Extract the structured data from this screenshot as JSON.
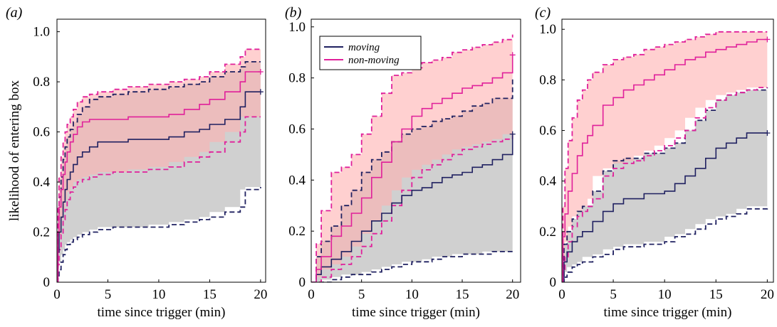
{
  "colors": {
    "moving": "#1f2060",
    "non_moving": "#e0209a",
    "moving_band": "#cdcdcd",
    "non_moving_band": "#ffb0b0",
    "overlap_band": "#c09a98"
  },
  "chart_data": [
    {
      "type": "line",
      "panel_label": "(a)",
      "xlabel": "time since trigger (min)",
      "ylabel": "likelihood of entering box",
      "xlim": [
        0,
        20.5
      ],
      "ylim": [
        0,
        1.05
      ],
      "xticks": [
        0,
        5,
        10,
        15,
        20
      ],
      "yticks": [
        0,
        0.2,
        0.4,
        0.6,
        0.8,
        1.0
      ],
      "ytick_labels": [
        "0",
        "0.2",
        "0.4",
        "0.6",
        "0.8",
        "1.0"
      ],
      "legend": null,
      "series": [
        {
          "name": "moving",
          "x": [
            0,
            0.1,
            0.2,
            0.4,
            0.6,
            0.8,
            1.0,
            1.3,
            1.6,
            2.0,
            2.5,
            3.2,
            4.0,
            5.5,
            7.0,
            9.0,
            11.0,
            12.5,
            14.0,
            15.0,
            16.5,
            18.0,
            18.5,
            20.0
          ],
          "y": [
            0,
            0.12,
            0.2,
            0.26,
            0.32,
            0.37,
            0.41,
            0.44,
            0.47,
            0.5,
            0.52,
            0.54,
            0.56,
            0.56,
            0.57,
            0.57,
            0.58,
            0.6,
            0.61,
            0.63,
            0.65,
            0.7,
            0.76,
            0.76
          ],
          "lower": [
            0,
            0.02,
            0.05,
            0.08,
            0.11,
            0.13,
            0.15,
            0.16,
            0.17,
            0.18,
            0.19,
            0.2,
            0.21,
            0.22,
            0.22,
            0.22,
            0.23,
            0.24,
            0.25,
            0.26,
            0.28,
            0.3,
            0.37,
            0.38
          ],
          "upper": [
            0,
            0.25,
            0.34,
            0.42,
            0.49,
            0.54,
            0.58,
            0.61,
            0.64,
            0.67,
            0.7,
            0.73,
            0.74,
            0.75,
            0.76,
            0.77,
            0.78,
            0.79,
            0.8,
            0.82,
            0.84,
            0.86,
            0.88,
            0.88
          ]
        },
        {
          "name": "non-moving",
          "x": [
            0,
            0.1,
            0.2,
            0.4,
            0.6,
            0.8,
            1.0,
            1.3,
            1.6,
            2.0,
            2.5,
            3.2,
            4.0,
            5.5,
            7.0,
            9.0,
            11.0,
            12.5,
            14.0,
            15.0,
            16.5,
            18.0,
            18.5,
            20.0
          ],
          "y": [
            0,
            0.2,
            0.3,
            0.37,
            0.43,
            0.48,
            0.52,
            0.56,
            0.59,
            0.62,
            0.64,
            0.65,
            0.65,
            0.65,
            0.66,
            0.66,
            0.67,
            0.69,
            0.71,
            0.73,
            0.76,
            0.8,
            0.84,
            0.84
          ],
          "lower": [
            0,
            0.07,
            0.13,
            0.19,
            0.25,
            0.29,
            0.33,
            0.36,
            0.38,
            0.4,
            0.41,
            0.42,
            0.43,
            0.44,
            0.44,
            0.45,
            0.46,
            0.48,
            0.5,
            0.52,
            0.56,
            0.6,
            0.66,
            0.66
          ],
          "upper": [
            0,
            0.3,
            0.42,
            0.5,
            0.56,
            0.6,
            0.63,
            0.66,
            0.69,
            0.72,
            0.74,
            0.75,
            0.76,
            0.77,
            0.78,
            0.79,
            0.8,
            0.81,
            0.82,
            0.84,
            0.87,
            0.9,
            0.93,
            0.93
          ]
        }
      ]
    },
    {
      "type": "line",
      "panel_label": "(b)",
      "xlabel": "time since trigger (min)",
      "ylabel": "",
      "xlim": [
        0,
        20.8
      ],
      "ylim": [
        0,
        1.03
      ],
      "xticks": [
        0,
        5,
        10,
        15,
        20
      ],
      "yticks": [
        0,
        0.2,
        0.4,
        0.6,
        0.8,
        1.0
      ],
      "ytick_labels": [
        "0",
        "0.2",
        "0.4",
        "0.6",
        "0.8",
        "1.0"
      ],
      "legend": {
        "entries": [
          {
            "label": "moving",
            "color_key": "moving"
          },
          {
            "label": "non-moving",
            "color_key": "non_moving"
          }
        ],
        "location": "top-left"
      },
      "series": [
        {
          "name": "moving",
          "x": [
            0,
            0.5,
            1.0,
            2.0,
            3.0,
            4.0,
            5.0,
            6.0,
            7.0,
            8.0,
            9.0,
            10.0,
            11.0,
            12.0,
            13.0,
            14.0,
            15.0,
            16.0,
            17.0,
            18.0,
            19.0,
            20.0
          ],
          "y": [
            0,
            0.03,
            0.06,
            0.09,
            0.12,
            0.16,
            0.2,
            0.24,
            0.27,
            0.31,
            0.34,
            0.36,
            0.37,
            0.39,
            0.41,
            0.42,
            0.43,
            0.45,
            0.46,
            0.48,
            0.5,
            0.58
          ],
          "lower": [
            0,
            0,
            0,
            0.01,
            0.02,
            0.03,
            0.03,
            0.04,
            0.05,
            0.06,
            0.07,
            0.08,
            0.08,
            0.09,
            0.1,
            0.1,
            0.11,
            0.11,
            0.11,
            0.12,
            0.12,
            0.12
          ],
          "upper": [
            0,
            0.1,
            0.16,
            0.22,
            0.3,
            0.36,
            0.43,
            0.48,
            0.51,
            0.55,
            0.58,
            0.6,
            0.61,
            0.63,
            0.64,
            0.65,
            0.67,
            0.69,
            0.7,
            0.72,
            0.72,
            0.8
          ]
        },
        {
          "name": "non-moving",
          "x": [
            0,
            0.5,
            1.0,
            2.0,
            3.0,
            4.0,
            5.0,
            6.0,
            7.0,
            8.0,
            9.0,
            10.0,
            11.0,
            12.0,
            13.0,
            14.0,
            15.0,
            16.0,
            17.0,
            18.0,
            19.0,
            20.0
          ],
          "y": [
            0,
            0.05,
            0.1,
            0.18,
            0.22,
            0.27,
            0.33,
            0.41,
            0.47,
            0.55,
            0.6,
            0.65,
            0.68,
            0.7,
            0.72,
            0.74,
            0.76,
            0.77,
            0.78,
            0.8,
            0.82,
            0.89
          ],
          "lower": [
            0,
            0,
            0.02,
            0.05,
            0.07,
            0.1,
            0.14,
            0.19,
            0.24,
            0.3,
            0.36,
            0.41,
            0.44,
            0.46,
            0.48,
            0.5,
            0.52,
            0.53,
            0.54,
            0.55,
            0.56,
            0.58
          ],
          "upper": [
            0,
            0.15,
            0.28,
            0.43,
            0.45,
            0.5,
            0.58,
            0.65,
            0.74,
            0.81,
            0.82,
            0.84,
            0.86,
            0.87,
            0.88,
            0.9,
            0.91,
            0.92,
            0.93,
            0.94,
            0.95,
            0.97
          ]
        }
      ]
    },
    {
      "type": "line",
      "panel_label": "(c)",
      "xlabel": "time since trigger (min)",
      "ylabel": "",
      "xlim": [
        0,
        20.6
      ],
      "ylim": [
        0,
        1.04
      ],
      "xticks": [
        0,
        5,
        10,
        15,
        20
      ],
      "yticks": [
        0,
        0.2,
        0.4,
        0.6,
        0.8,
        1.0
      ],
      "ytick_labels": [
        "0",
        "0.2",
        "0.4",
        "0.6",
        "0.8",
        "1.0"
      ],
      "legend": null,
      "series": [
        {
          "name": "moving",
          "x": [
            0,
            0.2,
            0.5,
            1.0,
            1.5,
            2.0,
            3.0,
            4.0,
            5.0,
            6.0,
            8.0,
            10.0,
            11.0,
            12.0,
            13.0,
            14.0,
            15.0,
            16.0,
            17.0,
            18.0,
            20.0
          ],
          "y": [
            0,
            0.08,
            0.12,
            0.16,
            0.18,
            0.2,
            0.24,
            0.28,
            0.31,
            0.33,
            0.35,
            0.36,
            0.39,
            0.42,
            0.45,
            0.49,
            0.53,
            0.55,
            0.57,
            0.59,
            0.59
          ],
          "lower": [
            0,
            0.02,
            0.04,
            0.06,
            0.07,
            0.08,
            0.1,
            0.11,
            0.13,
            0.14,
            0.15,
            0.16,
            0.18,
            0.19,
            0.21,
            0.23,
            0.25,
            0.26,
            0.27,
            0.29,
            0.3
          ],
          "upper": [
            0,
            0.15,
            0.2,
            0.25,
            0.28,
            0.3,
            0.36,
            0.44,
            0.48,
            0.49,
            0.51,
            0.53,
            0.55,
            0.6,
            0.64,
            0.68,
            0.72,
            0.74,
            0.75,
            0.76,
            0.77
          ]
        },
        {
          "name": "non-moving",
          "x": [
            0,
            0.1,
            0.3,
            0.6,
            1.0,
            1.5,
            2.0,
            2.5,
            3.0,
            4.0,
            5.0,
            6.0,
            7.0,
            8.0,
            9.0,
            10.0,
            11.0,
            12.0,
            13.0,
            14.0,
            15.0,
            16.0,
            17.0,
            18.0,
            19.0,
            20.0
          ],
          "y": [
            0,
            0.18,
            0.27,
            0.36,
            0.43,
            0.5,
            0.55,
            0.58,
            0.62,
            0.7,
            0.73,
            0.76,
            0.78,
            0.8,
            0.82,
            0.84,
            0.86,
            0.88,
            0.89,
            0.91,
            0.92,
            0.93,
            0.94,
            0.95,
            0.96,
            0.96
          ],
          "lower": [
            0,
            0.05,
            0.1,
            0.16,
            0.22,
            0.26,
            0.28,
            0.3,
            0.33,
            0.42,
            0.45,
            0.47,
            0.48,
            0.5,
            0.52,
            0.54,
            0.57,
            0.6,
            0.65,
            0.69,
            0.72,
            0.74,
            0.75,
            0.76,
            0.77,
            0.77
          ],
          "upper": [
            0,
            0.3,
            0.45,
            0.56,
            0.65,
            0.72,
            0.76,
            0.8,
            0.83,
            0.86,
            0.88,
            0.89,
            0.9,
            0.92,
            0.93,
            0.94,
            0.95,
            0.96,
            0.97,
            0.98,
            0.99,
            0.99,
            0.99,
            0.99,
            0.99,
            0.99
          ]
        }
      ]
    }
  ]
}
